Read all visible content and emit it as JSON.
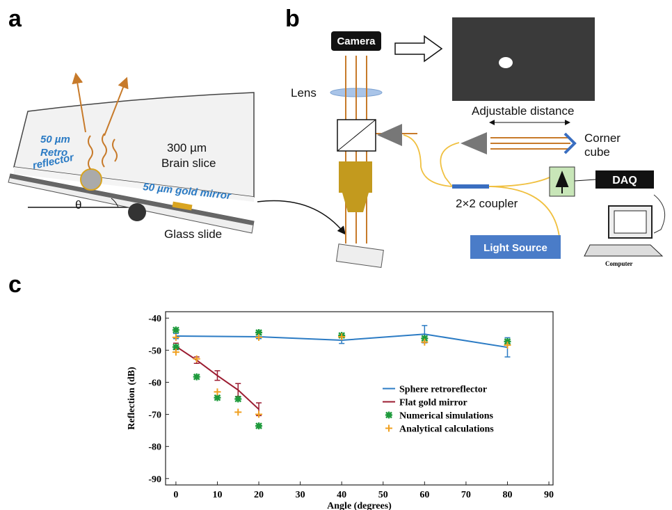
{
  "figure": {
    "panel_labels": [
      "a",
      "b",
      "c"
    ],
    "brain_slice": {
      "thickness": "300 µm",
      "name": "Brain slice",
      "retro": [
        "50 µm",
        "Retro",
        "reflector"
      ],
      "mirror": "50 µm gold mirror",
      "angle": "θ",
      "glass": "Glass slide"
    },
    "setup": {
      "camera": "Camera",
      "lens": "Lens",
      "distance": "Adjustable distance",
      "corner": [
        "Corner",
        "cube"
      ],
      "daq": "DAQ",
      "coupler": "2×2 coupler",
      "source": "Light Source",
      "computer": "Computer"
    }
  },
  "chart_data": {
    "type": "line",
    "x_label": "Angle (degrees)",
    "y_label": "Reflection (dB)",
    "xlim": [
      -2.5,
      91
    ],
    "ylim": [
      -92,
      -38
    ],
    "xticks": [
      0,
      10,
      20,
      30,
      40,
      50,
      60,
      70,
      80,
      90
    ],
    "yticks": [
      -90,
      -80,
      -70,
      -60,
      -50,
      -40
    ],
    "legend": "center right",
    "series": [
      {
        "name": "Sphere retroreflector",
        "type": "line",
        "color": "#2b7bc4",
        "x": [
          0,
          20,
          40,
          60,
          80
        ],
        "values": [
          -45.6,
          -45.8,
          -46.9,
          -45,
          -49.1
        ],
        "errors": [
          0.8,
          0.6,
          1,
          2.7,
          3
        ]
      },
      {
        "name": "Flat gold mirror",
        "type": "line",
        "color": "#9b1b30",
        "x": [
          0,
          5,
          10,
          15,
          20
        ],
        "values": [
          -48.8,
          -53.1,
          -57.9,
          -62.4,
          -68.4
        ],
        "errors": [
          1,
          1,
          1.5,
          2,
          2
        ]
      },
      {
        "name": "Numerical simulations",
        "type": "scatter",
        "marker": "asterisk",
        "color": "#1e9a3c",
        "x": [
          0,
          0,
          5,
          10,
          15,
          20,
          20,
          40,
          60,
          80
        ],
        "values": [
          -43.7,
          -49,
          -58.3,
          -64.8,
          -65.2,
          -44.5,
          -73.6,
          -45.4,
          -46.3,
          -47.3
        ]
      },
      {
        "name": "Analytical calculations",
        "type": "scatter",
        "marker": "plus",
        "color": "#f0a020",
        "x": [
          0,
          0,
          5,
          10,
          15,
          20,
          20,
          40,
          60,
          80
        ],
        "values": [
          -46,
          -50.6,
          -52.7,
          -63,
          -69.3,
          -46,
          -70,
          -45.8,
          -47.5,
          -48.4
        ]
      }
    ]
  }
}
